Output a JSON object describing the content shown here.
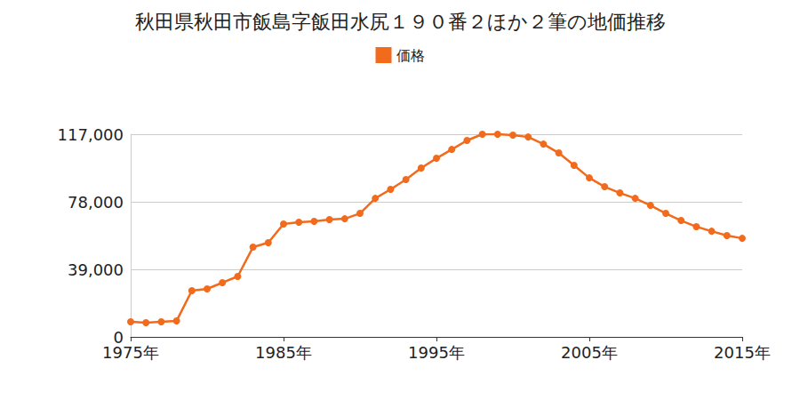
{
  "chart_data": {
    "type": "line",
    "title": "秋田県秋田市飯島字飯田水尻１９０番２ほか２筆の地価推移",
    "x": [
      1975,
      1976,
      1977,
      1978,
      1979,
      1980,
      1981,
      1982,
      1983,
      1984,
      1985,
      1986,
      1987,
      1988,
      1989,
      1990,
      1991,
      1992,
      1993,
      1994,
      1995,
      1996,
      1997,
      1998,
      1999,
      2000,
      2001,
      2002,
      2003,
      2004,
      2005,
      2006,
      2007,
      2008,
      2009,
      2010,
      2011,
      2012,
      2013,
      2014,
      2015
    ],
    "series": [
      {
        "name": "価格",
        "color": "#f26a1b",
        "marker": "circle",
        "values": [
          8700,
          8200,
          8700,
          9200,
          26700,
          27700,
          31300,
          34900,
          51800,
          54400,
          65200,
          66200,
          66700,
          67700,
          68200,
          71300,
          80000,
          85200,
          90800,
          97500,
          103100,
          108200,
          113400,
          117000,
          117000,
          116500,
          115400,
          111300,
          106200,
          99000,
          91800,
          86700,
          83100,
          80000,
          75900,
          71300,
          67200,
          63600,
          61000,
          58500,
          56900
        ]
      }
    ],
    "xlim": [
      1975,
      2015
    ],
    "xticks": [
      {
        "value": 1975,
        "label": "1975年"
      },
      {
        "value": 1985,
        "label": "1985年"
      },
      {
        "value": 1995,
        "label": "1995年"
      },
      {
        "value": 2005,
        "label": "2005年"
      },
      {
        "value": 2015,
        "label": "2015年"
      }
    ],
    "ylim": [
      0,
      117000
    ],
    "yticks": [
      0,
      {
        "value": 39000,
        "label": "39,000"
      },
      {
        "value": 78000,
        "label": "78,000"
      },
      {
        "value": 117000,
        "label": "117,000"
      }
    ],
    "grid": true,
    "legend": "top"
  }
}
